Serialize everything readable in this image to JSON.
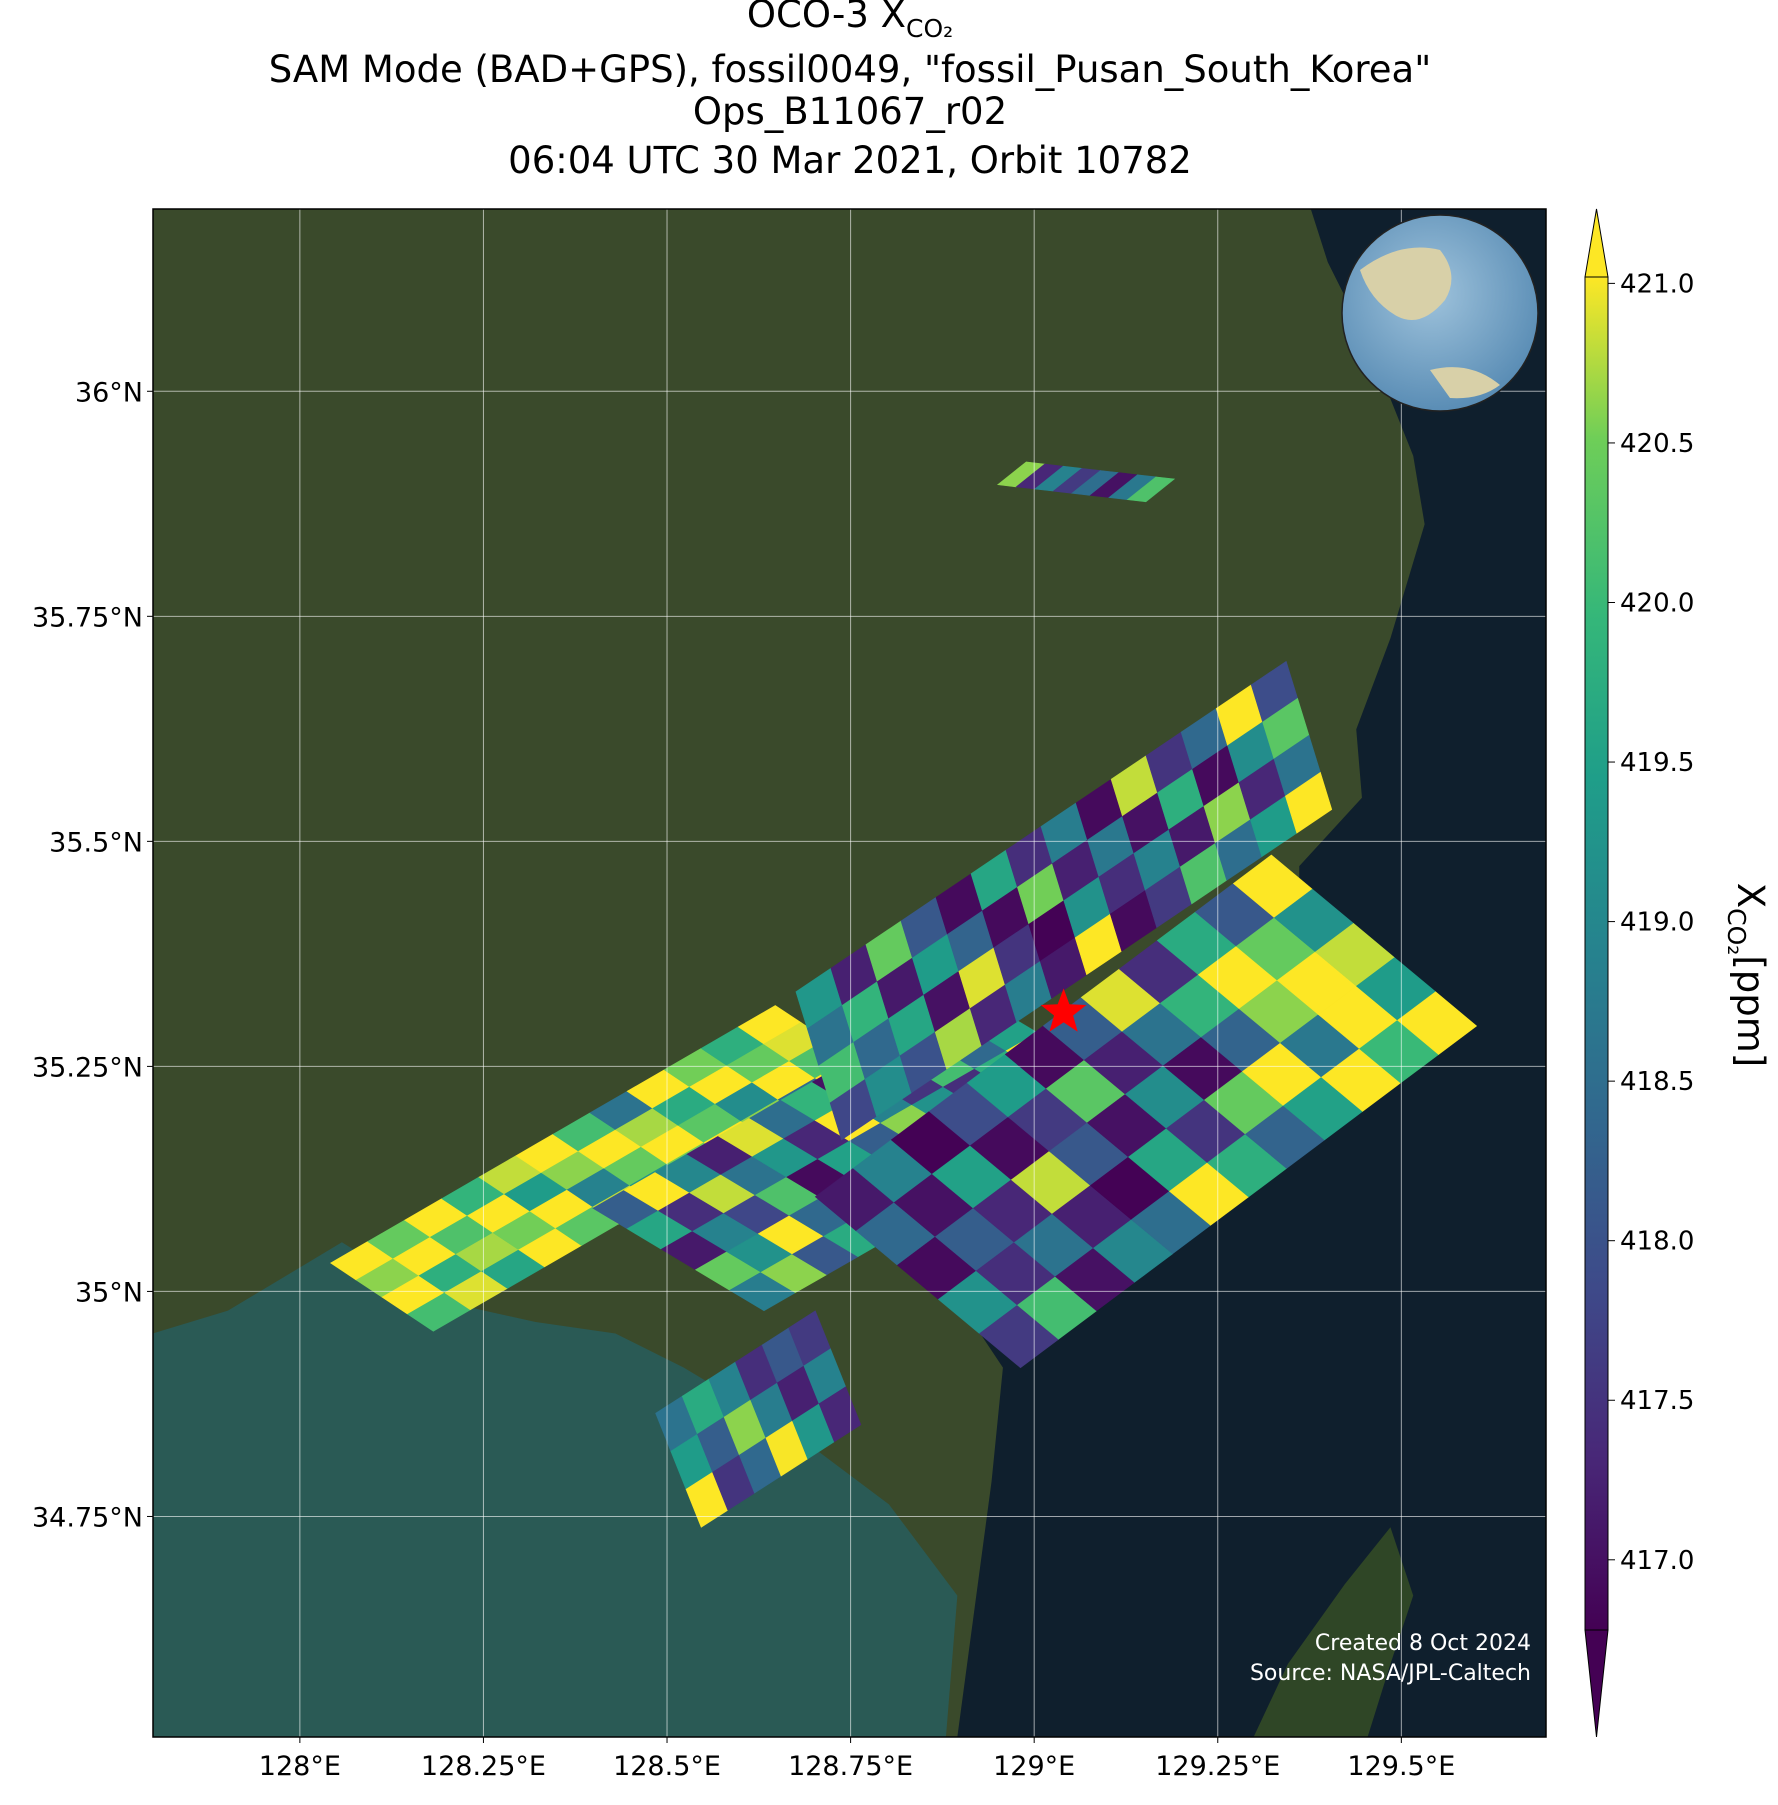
{
  "chart_data": {
    "type": "map",
    "title": "OCO-3 X",
    "title_subscript": "CO₂",
    "subtitle_lines": [
      "SAM Mode (BAD+GPS), fossil0049, \"fossil_Pusan_South_Korea\"",
      "Ops_B11067_r02",
      "06:04 UTC 30 Mar 2021, Orbit 10782"
    ],
    "xlim": [
      127.8,
      129.697
    ],
    "ylim": [
      34.505,
      36.2025
    ],
    "xticks": [
      {
        "value": 128,
        "label": "128°E"
      },
      {
        "value": 128.25,
        "label": "128.25°E"
      },
      {
        "value": 128.5,
        "label": "128.5°E"
      },
      {
        "value": 128.75,
        "label": "128.75°E"
      },
      {
        "value": 129,
        "label": "129°E"
      },
      {
        "value": 129.25,
        "label": "129.25°E"
      },
      {
        "value": 129.5,
        "label": "129.5°E"
      }
    ],
    "yticks": [
      {
        "value": 34.75,
        "label": "34.75°N"
      },
      {
        "value": 35,
        "label": "35°N"
      },
      {
        "value": 35.25,
        "label": "35.25°N"
      },
      {
        "value": 35.5,
        "label": "35.5°N"
      },
      {
        "value": 35.75,
        "label": "35.75°N"
      },
      {
        "value": 36,
        "label": "36°N"
      }
    ],
    "grid": true,
    "colormap": "viridis",
    "clim": [
      416.78,
      421.02
    ],
    "colorbar_ticks": [
      {
        "value": 417,
        "label": "417.0"
      },
      {
        "value": 417.5,
        "label": "417.5"
      },
      {
        "value": 418,
        "label": "418.0"
      },
      {
        "value": 418.5,
        "label": "418.5"
      },
      {
        "value": 419,
        "label": "419.0"
      },
      {
        "value": 419.5,
        "label": "419.5"
      },
      {
        "value": 420,
        "label": "420.0"
      },
      {
        "value": 420.5,
        "label": "420.5"
      },
      {
        "value": 421,
        "label": "421.0"
      }
    ],
    "colorbar_label": "X",
    "colorbar_label_subscript": "CO₂",
    "colorbar_label_unit": "[ppm]",
    "site": {
      "lon": 129.04,
      "lat": 35.31
    },
    "credit_lines": [
      "Created 8 Oct 2024",
      "Source: NASA/JPL-Caltech"
    ],
    "swaths": [
      {
        "origin": [
          128.0419,
          35.0316
        ],
        "along": [
          0.6056,
          0.2861
        ],
        "cross": [
          0.1398,
          -0.0759
        ],
        "values": [
          [
            421.1,
            420.6,
            421.2,
            420.1
          ],
          [
            420.4,
            421.1,
            419.8,
            420.9
          ],
          [
            421.2,
            420.2,
            420.7,
            419.6
          ],
          [
            419.9,
            421.1,
            420.5,
            421.2
          ],
          [
            420.8,
            419.4,
            421.1,
            420.3
          ],
          [
            421.2,
            420.6,
            418.9,
            420.8
          ],
          [
            420.1,
            421.2,
            420.4,
            419.2
          ],
          [
            418.6,
            420.7,
            421.1,
            420.5
          ],
          [
            421.1,
            419.7,
            420.3,
            421.2
          ],
          [
            420.5,
            421.2,
            419.1,
            420.6
          ],
          [
            419.8,
            420.4,
            421.2,
            418.4
          ],
          [
            421.2,
            420.9,
            420.2,
            421.1
          ]
        ]
      },
      {
        "origin": [
          128.3991,
          35.0924
        ],
        "along": [
          0.5124,
          0.2405
        ],
        "cross": [
          0.2329,
          -0.1139
        ],
        "values": [
          [
            418.2,
            419.6,
            417.1,
            420.4,
            418.8
          ],
          [
            421.1,
            417.4,
            418.9,
            419.2,
            420.6
          ],
          [
            419.0,
            420.8,
            417.8,
            421.2,
            418.1
          ],
          [
            417.2,
            418.6,
            420.2,
            418.4,
            419.7
          ],
          [
            420.9,
            419.3,
            416.9,
            419.8,
            421.1
          ],
          [
            418.5,
            417.3,
            419.5,
            420.7,
            417.6
          ],
          [
            419.9,
            421.2,
            418.2,
            417.1,
            419.4
          ],
          [
            417.0,
            418.9,
            420.6,
            419.0,
            418.3
          ],
          [
            420.3,
            417.5,
            419.2,
            421.1,
            416.9
          ],
          [
            418.8,
            420.1,
            417.4,
            418.6,
            420.5
          ],
          [
            421.2,
            418.4,
            419.8,
            417.2,
            419.1
          ],
          [
            417.7,
            419.5,
            421.0,
            418.9,
            417.5
          ]
        ]
      },
      {
        "origin": [
          128.7019,
          35.1051
        ],
        "along": [
          0.6211,
          0.3797
        ],
        "cross": [
          0.2795,
          -0.1899
        ],
        "values": [
          [
            417.1,
            418.4,
            416.9,
            419.2,
            417.6
          ],
          [
            418.9,
            417.0,
            418.2,
            417.4,
            420.1
          ],
          [
            416.8,
            419.5,
            417.3,
            418.6,
            417.0
          ],
          [
            417.9,
            416.9,
            420.8,
            417.2,
            419.0
          ],
          [
            419.4,
            417.6,
            418.1,
            416.8,
            418.5
          ],
          [
            416.9,
            420.3,
            417.0,
            419.6,
            421.1
          ],
          [
            418.2,
            417.2,
            419.1,
            417.5,
            419.8
          ],
          [
            420.9,
            418.6,
            416.9,
            420.4,
            418.3
          ],
          [
            417.4,
            419.9,
            418.3,
            421.2,
            419.5
          ],
          [
            419.7,
            421.1,
            420.6,
            418.7,
            421.2
          ],
          [
            418.1,
            420.4,
            421.2,
            421.1,
            420.0
          ],
          [
            421.2,
            419.2,
            420.8,
            419.4,
            421.1
          ]
        ]
      },
      {
        "origin": [
          128.6755,
          35.3329
        ],
        "along": [
          0.6677,
          0.3671
        ],
        "cross": [
          0.0621,
          -0.1646
        ],
        "values": [
          [
            419.3,
            418.6,
            420.1,
            417.8
          ],
          [
            417.2,
            419.9,
            418.4,
            419.1
          ],
          [
            420.4,
            417.1,
            419.6,
            418.0
          ],
          [
            418.1,
            419.4,
            417.0,
            420.7
          ],
          [
            416.9,
            418.3,
            420.9,
            417.3
          ],
          [
            419.6,
            416.9,
            417.5,
            418.8
          ],
          [
            417.4,
            420.5,
            416.8,
            417.1
          ],
          [
            418.8,
            417.2,
            419.2,
            421.1
          ],
          [
            416.9,
            418.7,
            417.4,
            416.9
          ],
          [
            420.8,
            417.0,
            418.9,
            417.6
          ],
          [
            417.5,
            419.8,
            417.1,
            420.2
          ],
          [
            418.4,
            416.9,
            420.6,
            418.5
          ],
          [
            421.1,
            419.1,
            417.3,
            419.4
          ],
          [
            417.9,
            420.3,
            418.6,
            421.2
          ]
        ]
      },
      {
        "origin": [
          128.9891,
          35.9215
        ],
        "along": [
          0.2019,
          -0.019
        ],
        "cross": [
          -0.0388,
          -0.0253
        ],
        "values": [
          [
            420.6
          ],
          [
            417.3
          ],
          [
            418.9
          ],
          [
            417.6
          ],
          [
            418.5
          ],
          [
            417.0
          ],
          [
            418.7
          ],
          [
            420.2
          ]
        ]
      },
      {
        "origin": [
          128.4845,
          34.8646
        ],
        "along": [
          0.2174,
          0.1139
        ],
        "cross": [
          0.0621,
          -0.1266
        ],
        "values": [
          [
            418.6,
            419.4,
            421.1
          ],
          [
            419.7,
            418.2,
            417.5
          ],
          [
            418.9,
            420.6,
            418.4
          ],
          [
            417.4,
            418.8,
            421.0
          ],
          [
            418.1,
            417.2,
            419.3
          ],
          [
            417.6,
            418.9,
            417.3
          ]
        ]
      }
    ]
  }
}
